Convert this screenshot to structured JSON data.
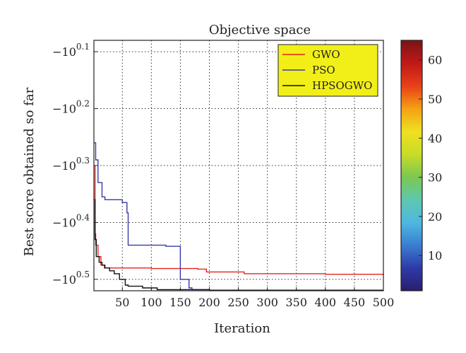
{
  "chart_data": {
    "type": "line",
    "title": "Objective space",
    "xlabel": "Iteration",
    "ylabel": "Best score obtained so far",
    "xlim": [
      1,
      500
    ],
    "ylim_exponent": [
      0.08,
      0.52
    ],
    "y_axis": "negative log scale: value = -10^e",
    "grid": "on (dotted)",
    "legend_position": "top-right",
    "x_ticks": [
      "50",
      "100",
      "150",
      "200",
      "250",
      "300",
      "350",
      "400",
      "450",
      "500"
    ],
    "y_ticks": [
      {
        "base": "−10",
        "exp": "0.1",
        "value": 0.1
      },
      {
        "base": "−10",
        "exp": "0.2",
        "value": 0.2
      },
      {
        "base": "−10",
        "exp": "0.3",
        "value": 0.3
      },
      {
        "base": "−10",
        "exp": "0.4",
        "value": 0.4
      },
      {
        "base": "−10",
        "exp": "0.5",
        "value": 0.5
      }
    ],
    "series": [
      {
        "name": "GWO",
        "color": "#e8221c",
        "x": [
          1,
          3,
          4,
          7,
          8,
          12,
          13,
          18,
          19,
          25,
          40,
          100,
          180,
          195,
          260,
          400,
          500
        ],
        "y_exp": [
          0.3,
          0.42,
          0.44,
          0.44,
          0.46,
          0.46,
          0.475,
          0.475,
          0.48,
          0.48,
          0.48,
          0.481,
          0.482,
          0.487,
          0.49,
          0.491,
          0.493
        ]
      },
      {
        "name": "PSO",
        "color": "#3a3aa8",
        "x": [
          1,
          4,
          8,
          15,
          20,
          50,
          58,
          60,
          120,
          125,
          150,
          165,
          170,
          200,
          500
        ],
        "y_exp": [
          0.26,
          0.29,
          0.33,
          0.355,
          0.36,
          0.365,
          0.383,
          0.44,
          0.44,
          0.442,
          0.5,
          0.515,
          0.518,
          0.519,
          0.519
        ]
      },
      {
        "name": "HPSOGWO",
        "color": "#111111",
        "x": [
          1,
          3,
          5,
          10,
          15,
          20,
          28,
          36,
          45,
          55,
          60,
          85,
          110,
          170,
          200,
          250,
          370,
          500
        ],
        "y_exp": [
          0.36,
          0.43,
          0.46,
          0.47,
          0.475,
          0.48,
          0.485,
          0.49,
          0.5,
          0.51,
          0.512,
          0.515,
          0.518,
          0.518,
          0.519,
          0.519,
          0.519,
          0.519
        ]
      }
    ],
    "colorbar": {
      "ticks": [
        "10",
        "20",
        "30",
        "40",
        "50",
        "60"
      ],
      "min": 1,
      "max": 65,
      "colors": [
        "#2a1e6e",
        "#2d3aa8",
        "#3b7ed0",
        "#4fb8e0",
        "#5ec8b0",
        "#7cc850",
        "#c8dc28",
        "#f0e020",
        "#f4a014",
        "#e84018",
        "#c01818",
        "#7a1414"
      ]
    }
  }
}
